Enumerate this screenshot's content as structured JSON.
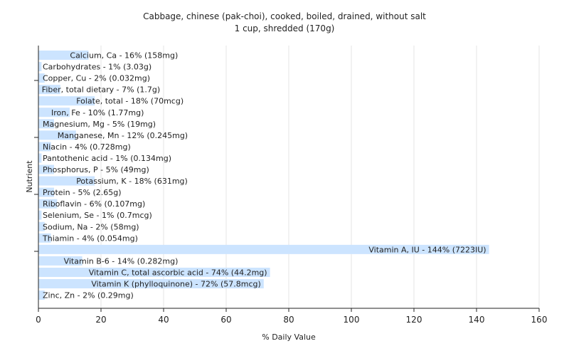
{
  "chart_data": {
    "type": "bar",
    "orientation": "horizontal",
    "title": "Cabbage, chinese (pak-choi), cooked, boiled, drained, without salt",
    "subtitle": "1 cup, shredded (170g)",
    "xlabel": "% Daily Value",
    "ylabel": "Nutrient",
    "xlim": [
      0,
      160
    ],
    "xticks": [
      0,
      20,
      40,
      60,
      80,
      100,
      120,
      140,
      160
    ],
    "grid": true,
    "bar_color": "#cce4ff",
    "categories": [
      "Calcium, Ca",
      "Carbohydrates",
      "Copper, Cu",
      "Fiber, total dietary",
      "Folate, total",
      "Iron, Fe",
      "Magnesium, Mg",
      "Manganese, Mn",
      "Niacin",
      "Pantothenic acid",
      "Phosphorus, P",
      "Potassium, K",
      "Protein",
      "Riboflavin",
      "Selenium, Se",
      "Sodium, Na",
      "Thiamin",
      "Vitamin A, IU",
      "Vitamin B-6",
      "Vitamin C, total ascorbic acid",
      "Vitamin K (phylloquinone)",
      "Zinc, Zn"
    ],
    "values": [
      16,
      1,
      2,
      7,
      18,
      10,
      5,
      12,
      4,
      1,
      5,
      18,
      5,
      6,
      1,
      2,
      4,
      144,
      14,
      74,
      72,
      2
    ],
    "labels": [
      "Calcium, Ca - 16% (158mg)",
      "Carbohydrates - 1% (3.03g)",
      "Copper, Cu - 2% (0.032mg)",
      "Fiber, total dietary - 7% (1.7g)",
      "Folate, total - 18% (70mcg)",
      "Iron, Fe - 10% (1.77mg)",
      "Magnesium, Mg - 5% (19mg)",
      "Manganese, Mn - 12% (0.245mg)",
      "Niacin - 4% (0.728mg)",
      "Pantothenic acid - 1% (0.134mg)",
      "Phosphorus, P - 5% (49mg)",
      "Potassium, K - 18% (631mg)",
      "Protein - 5% (2.65g)",
      "Riboflavin - 6% (0.107mg)",
      "Selenium, Se - 1% (0.7mcg)",
      "Sodium, Na - 2% (58mg)",
      "Thiamin - 4% (0.054mg)",
      "Vitamin A, IU - 144% (7223IU)",
      "Vitamin B-6 - 14% (0.282mg)",
      "Vitamin C, total ascorbic acid - 74% (44.2mg)",
      "Vitamin K (phylloquinone) - 72% (57.8mcg)",
      "Zinc, Zn - 2% (0.29mg)"
    ]
  }
}
